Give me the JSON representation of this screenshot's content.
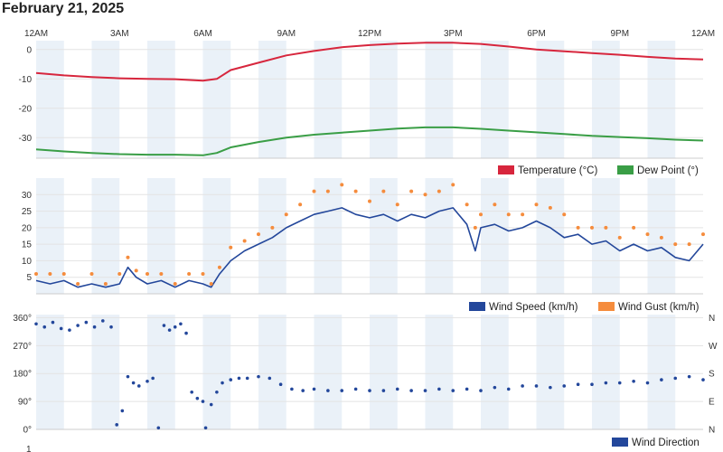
{
  "page": {
    "date_title": "February 21, 2025"
  },
  "colors": {
    "temperature": "#d7263d",
    "dew_point": "#3a9e46",
    "wind_speed": "#23479b",
    "wind_gust": "#f58c3d",
    "wind_direction": "#23479b",
    "band": "#eaf1f8",
    "grid": "#e3e3e3"
  },
  "time_axis": {
    "labels": [
      "12AM",
      "3AM",
      "6AM",
      "9AM",
      "12PM",
      "3PM",
      "6PM",
      "9PM",
      "12AM"
    ],
    "hours": [
      0,
      3,
      6,
      9,
      12,
      15,
      18,
      21,
      24
    ]
  },
  "chart_data": [
    {
      "type": "line",
      "x_unit": "hour of day",
      "xlim": [
        0,
        24
      ],
      "ylim": [
        -37,
        3
      ],
      "y_ticks": [
        "0",
        "-10",
        "-20",
        "-30"
      ],
      "y_tick_values": [
        0,
        -10,
        -20,
        -30
      ],
      "legend_position": "bottom-right",
      "series": [
        {
          "name": "Temperature (°C)",
          "x": [
            0,
            1,
            2,
            3,
            4,
            5,
            6,
            6.5,
            7,
            8,
            9,
            10,
            11,
            12,
            13,
            14,
            15,
            16,
            17,
            18,
            19,
            20,
            21,
            22,
            23,
            24
          ],
          "y": [
            -8,
            -8.8,
            -9.4,
            -9.8,
            -10,
            -10.1,
            -10.6,
            -10,
            -7,
            -4.5,
            -2,
            -0.5,
            0.8,
            1.5,
            2,
            2.3,
            2.3,
            1.9,
            1,
            0,
            -0.6,
            -1.2,
            -1.8,
            -2.5,
            -3.1,
            -3.4
          ]
        },
        {
          "name": "Dew Point (°)",
          "x": [
            0,
            1,
            2,
            3,
            4,
            5,
            6,
            6.5,
            7,
            8,
            9,
            10,
            11,
            12,
            13,
            14,
            15,
            16,
            17,
            18,
            19,
            20,
            21,
            22,
            23,
            24
          ],
          "y": [
            -34,
            -34.7,
            -35.2,
            -35.6,
            -35.8,
            -35.8,
            -36,
            -35.2,
            -33.3,
            -31.5,
            -30,
            -29,
            -28.3,
            -27.6,
            -26.9,
            -26.5,
            -26.5,
            -27,
            -27.6,
            -28.2,
            -28.8,
            -29.4,
            -29.8,
            -30.2,
            -30.7,
            -31
          ]
        }
      ]
    },
    {
      "type": "line",
      "x_unit": "hour of day",
      "xlim": [
        0,
        24
      ],
      "ylim": [
        0,
        35
      ],
      "y_ticks": [
        "5",
        "10",
        "15",
        "20",
        "25",
        "30"
      ],
      "y_tick_values": [
        5,
        10,
        15,
        20,
        25,
        30
      ],
      "legend_position": "bottom-right",
      "series": [
        {
          "name": "Wind Speed (km/h)",
          "style": "line",
          "x": [
            0,
            0.5,
            1,
            1.5,
            2,
            2.5,
            3,
            3.3,
            3.6,
            4,
            4.5,
            5,
            5.5,
            6,
            6.3,
            6.6,
            7,
            7.5,
            8,
            8.5,
            9,
            9.5,
            10,
            10.5,
            11,
            11.5,
            12,
            12.5,
            13,
            13.5,
            14,
            14.5,
            15,
            15.5,
            15.8,
            16,
            16.5,
            17,
            17.5,
            18,
            18.5,
            19,
            19.5,
            20,
            20.5,
            21,
            21.5,
            22,
            22.5,
            23,
            23.5,
            24
          ],
          "y": [
            4,
            3,
            4,
            2,
            3,
            2,
            3,
            8,
            5,
            3,
            4,
            2,
            4,
            3,
            2,
            6,
            10,
            13,
            15,
            17,
            20,
            22,
            24,
            25,
            26,
            24,
            23,
            24,
            22,
            24,
            23,
            25,
            26,
            21,
            13,
            20,
            21,
            19,
            20,
            22,
            20,
            17,
            18,
            15,
            16,
            13,
            15,
            13,
            14,
            11,
            10,
            15
          ]
        },
        {
          "name": "Wind Gust (km/h)",
          "style": "dots",
          "x": [
            0,
            0.5,
            1,
            1.5,
            2,
            2.5,
            3,
            3.3,
            3.6,
            4,
            4.5,
            5,
            5.5,
            6,
            6.3,
            6.6,
            7,
            7.5,
            8,
            8.5,
            9,
            9.5,
            10,
            10.5,
            11,
            11.5,
            12,
            12.5,
            13,
            13.5,
            14,
            14.5,
            15,
            15.5,
            15.8,
            16,
            16.5,
            17,
            17.5,
            18,
            18.5,
            19,
            19.5,
            20,
            20.5,
            21,
            21.5,
            22,
            22.5,
            23,
            23.5,
            24
          ],
          "y": [
            6,
            6,
            6,
            3,
            6,
            3,
            6,
            11,
            7,
            6,
            6,
            3,
            6,
            6,
            3,
            8,
            14,
            16,
            18,
            20,
            24,
            27,
            31,
            31,
            33,
            31,
            28,
            31,
            27,
            31,
            30,
            31,
            33,
            27,
            20,
            24,
            27,
            24,
            24,
            27,
            26,
            24,
            20,
            20,
            20,
            17,
            20,
            18,
            17,
            15,
            15,
            18
          ]
        }
      ]
    },
    {
      "type": "scatter",
      "x_unit": "hour of day",
      "xlim": [
        0,
        24
      ],
      "ylim": [
        0,
        370
      ],
      "y_ticks": [
        "0°",
        "90°",
        "180°",
        "270°",
        "360°"
      ],
      "y_tick_values": [
        0,
        90,
        180,
        270,
        360
      ],
      "right_ticks": [
        "N",
        "E",
        "S",
        "W",
        "N"
      ],
      "legend_position": "bottom-right",
      "series": [
        {
          "name": "Wind Direction",
          "x": [
            0,
            0.3,
            0.6,
            0.9,
            1.2,
            1.5,
            1.8,
            2.1,
            2.4,
            2.7,
            2.9,
            3.1,
            3.3,
            3.5,
            3.7,
            4.0,
            4.2,
            4.4,
            4.6,
            4.8,
            5.0,
            5.2,
            5.4,
            5.6,
            5.8,
            6.0,
            6.1,
            6.3,
            6.5,
            6.7,
            7.0,
            7.3,
            7.6,
            8.0,
            8.4,
            8.8,
            9.2,
            9.6,
            10.0,
            10.5,
            11.0,
            11.5,
            12.0,
            12.5,
            13.0,
            13.5,
            14.0,
            14.5,
            15.0,
            15.5,
            16.0,
            16.5,
            17.0,
            17.5,
            18.0,
            18.5,
            19.0,
            19.5,
            20.0,
            20.5,
            21.0,
            21.5,
            22.0,
            22.5,
            23.0,
            23.5,
            24.0
          ],
          "y": [
            340,
            330,
            345,
            325,
            320,
            335,
            345,
            330,
            350,
            330,
            15,
            60,
            170,
            150,
            140,
            155,
            165,
            5,
            335,
            320,
            330,
            340,
            310,
            120,
            100,
            90,
            5,
            80,
            120,
            150,
            160,
            165,
            165,
            170,
            165,
            145,
            130,
            125,
            130,
            125,
            125,
            130,
            125,
            125,
            130,
            125,
            125,
            130,
            125,
            130,
            125,
            135,
            130,
            140,
            140,
            135,
            140,
            145,
            145,
            150,
            150,
            155,
            150,
            160,
            165,
            170,
            160
          ]
        }
      ]
    }
  ],
  "axis_bottom": {
    "partial_label": "1"
  }
}
